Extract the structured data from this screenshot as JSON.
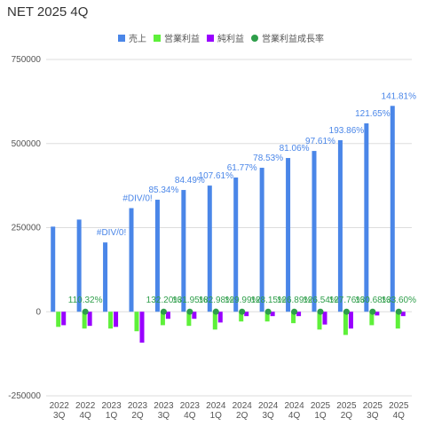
{
  "chart_data": {
    "type": "bar",
    "title": "NET 2025 4Q",
    "categories": [
      [
        "2022",
        "3Q"
      ],
      [
        "2022",
        "4Q"
      ],
      [
        "2023",
        "1Q"
      ],
      [
        "2023",
        "2Q"
      ],
      [
        "2023",
        "3Q"
      ],
      [
        "2023",
        "4Q"
      ],
      [
        "2024",
        "1Q"
      ],
      [
        "2024",
        "2Q"
      ],
      [
        "2024",
        "3Q"
      ],
      [
        "2024",
        "4Q"
      ],
      [
        "2025",
        "1Q"
      ],
      [
        "2025",
        "2Q"
      ],
      [
        "2025",
        "3Q"
      ],
      [
        "2025",
        "4Q"
      ]
    ],
    "series": [
      {
        "name": "売上",
        "color": "#4a86e8",
        "values": [
          253000,
          274000,
          206000,
          308000,
          333000,
          362000,
          375000,
          399000,
          428000,
          457000,
          478000,
          510000,
          560000,
          612000
        ]
      },
      {
        "name": "営業利益",
        "color": "#5ef03a",
        "values": [
          -45000,
          -50000,
          -50000,
          -58000,
          -40000,
          -42000,
          -53000,
          -29000,
          -29000,
          -34000,
          -53000,
          -69000,
          -40000,
          -50000
        ]
      },
      {
        "name": "純利益",
        "color": "#9900ff",
        "values": [
          -40000,
          -42000,
          -45000,
          -92000,
          -21000,
          -21000,
          -32000,
          -13000,
          -13000,
          -13000,
          -38000,
          -50000,
          -11000,
          -13000
        ]
      },
      {
        "name": "営業利益成長率",
        "color": "#2e9e4a",
        "type": "scatter",
        "values": [
          null,
          110.32,
          null,
          null,
          132.2,
          131.95,
          182.98,
          129.99,
          128.15,
          126.89,
          126.54,
          127.76,
          130.68,
          133.6
        ],
        "value_labels": [
          null,
          "110.32%",
          null,
          null,
          "132.20%",
          "131.95%",
          "182.98%",
          "129.99%",
          "128.15%",
          "126.89%",
          "126.54%",
          "127.76%",
          "130.68%",
          "133.60%"
        ]
      }
    ],
    "revenue_growth_labels": [
      null,
      null,
      "#DIV/0!",
      "#DIV/0!",
      "85.34%",
      "84.49%",
      "107.61%",
      "61.77%",
      "78.53%",
      "81.06%",
      "97.61%",
      "193.86%",
      "121.65%",
      "141.81%"
    ],
    "ylim": [
      -250000,
      750000
    ],
    "yticks": [
      -250000,
      0,
      250000,
      500000,
      750000
    ],
    "grid": true,
    "legend": "top"
  }
}
